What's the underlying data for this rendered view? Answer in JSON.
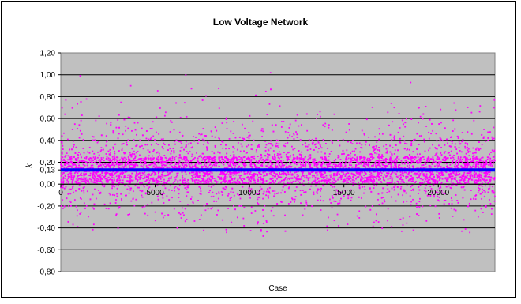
{
  "chart_data": {
    "type": "scatter",
    "title": "Low Voltage Network",
    "xlabel": "Case",
    "ylabel": "k",
    "xlim": [
      0,
      23000
    ],
    "ylim": [
      -0.8,
      1.2
    ],
    "x_ticks": [
      0,
      5000,
      10000,
      15000,
      20000
    ],
    "x_tick_labels": [
      "0",
      "5000",
      "10000",
      "15000",
      "20000"
    ],
    "y_ticks": [
      -0.8,
      -0.6,
      -0.4,
      -0.2,
      0.0,
      0.13,
      0.2,
      0.4,
      0.6,
      0.8,
      1.0,
      1.2
    ],
    "y_tick_labels": [
      "-0,80",
      "-0,60",
      "-0,40",
      "-0,20",
      "0,00",
      "0,13",
      "0,20",
      "0,40",
      "0,60",
      "0,80",
      "1,00",
      "1,20"
    ],
    "grid": true,
    "plot_background": "#c0c0c0",
    "point_color": "#ff00ff",
    "mean_line": {
      "y": 0.13,
      "color": "#0000ff"
    },
    "series": [
      {
        "points": {
          "count": 6000,
          "x_range": [
            0,
            23000
          ],
          "center": 0.14,
          "dense_band": [
            0.0,
            0.25
          ],
          "typical_range": [
            -0.45,
            0.6
          ],
          "extremes": [
            -0.65,
            1.02
          ]
        }
      }
    ]
  }
}
